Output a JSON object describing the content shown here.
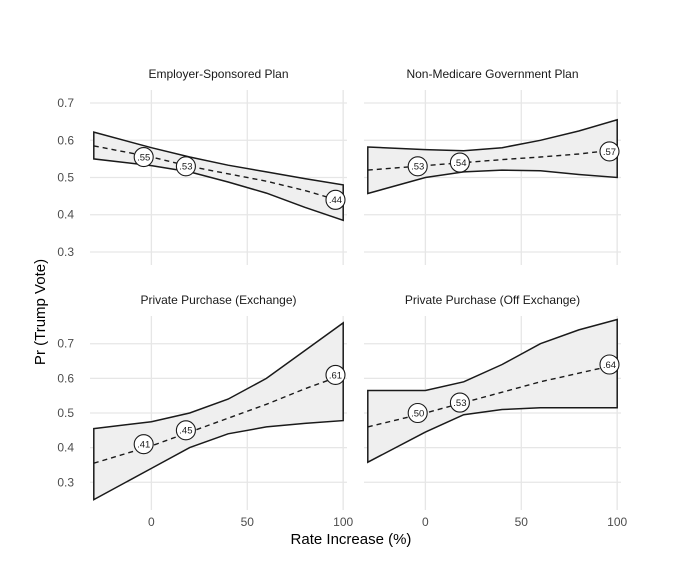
{
  "chart_data": {
    "type": "line",
    "title": "",
    "xlabel": "Rate Increase (%)",
    "ylabel": "Pr (Trump Vote)",
    "xlim": [
      -32,
      102
    ],
    "ylim": [
      0.22,
      0.78
    ],
    "x_ticks": [
      0,
      50,
      100
    ],
    "y_ticks": [
      0.3,
      0.4,
      0.5,
      0.6,
      0.7
    ],
    "y_tick_labels": [
      "0.3",
      "0.4",
      "0.5",
      "0.6",
      "0.7"
    ],
    "grid": true,
    "panels": [
      {
        "name": "Employer-Sponsored Plan",
        "x": [
          -30,
          0,
          20,
          40,
          60,
          80,
          100
        ],
        "trend": [
          0.585,
          0.555,
          0.53,
          0.51,
          0.49,
          0.465,
          0.435
        ],
        "lower": [
          0.55,
          0.532,
          0.515,
          0.488,
          0.458,
          0.42,
          0.385
        ],
        "upper": [
          0.622,
          0.58,
          0.555,
          0.533,
          0.515,
          0.497,
          0.48
        ],
        "points": [
          {
            "x": -4,
            "y": 0.555,
            "label": ".55"
          },
          {
            "x": 18,
            "y": 0.53,
            "label": ".53"
          },
          {
            "x": 96,
            "y": 0.44,
            "label": ".44"
          }
        ]
      },
      {
        "name": "Non-Medicare Government Plan",
        "x": [
          -30,
          0,
          20,
          40,
          60,
          80,
          100
        ],
        "trend": [
          0.52,
          0.532,
          0.54,
          0.548,
          0.555,
          0.563,
          0.575
        ],
        "lower": [
          0.457,
          0.5,
          0.515,
          0.52,
          0.518,
          0.508,
          0.5
        ],
        "upper": [
          0.582,
          0.575,
          0.572,
          0.58,
          0.6,
          0.625,
          0.655
        ],
        "points": [
          {
            "x": -4,
            "y": 0.53,
            "label": ".53"
          },
          {
            "x": 18,
            "y": 0.54,
            "label": ".54"
          },
          {
            "x": 96,
            "y": 0.57,
            "label": ".57"
          }
        ]
      },
      {
        "name": "Private Purchase (Exchange)",
        "x": [
          -30,
          0,
          20,
          40,
          60,
          80,
          100
        ],
        "trend": [
          0.355,
          0.405,
          0.445,
          0.485,
          0.525,
          0.57,
          0.61
        ],
        "lower": [
          0.25,
          0.34,
          0.4,
          0.44,
          0.46,
          0.47,
          0.478
        ],
        "upper": [
          0.455,
          0.475,
          0.5,
          0.54,
          0.6,
          0.68,
          0.76
        ],
        "points": [
          {
            "x": -4,
            "y": 0.41,
            "label": ".41"
          },
          {
            "x": 18,
            "y": 0.45,
            "label": ".45"
          },
          {
            "x": 96,
            "y": 0.61,
            "label": ".61"
          }
        ]
      },
      {
        "name": "Private Purchase (Off Exchange)",
        "x": [
          -30,
          0,
          20,
          40,
          60,
          80,
          100
        ],
        "trend": [
          0.46,
          0.5,
          0.53,
          0.56,
          0.59,
          0.615,
          0.64
        ],
        "lower": [
          0.358,
          0.445,
          0.495,
          0.51,
          0.515,
          0.515,
          0.515
        ],
        "upper": [
          0.565,
          0.565,
          0.59,
          0.64,
          0.7,
          0.74,
          0.77
        ],
        "points": [
          {
            "x": -4,
            "y": 0.5,
            "label": ".50"
          },
          {
            "x": 18,
            "y": 0.53,
            "label": ".53"
          },
          {
            "x": 96,
            "y": 0.64,
            "label": ".64"
          }
        ]
      }
    ]
  }
}
